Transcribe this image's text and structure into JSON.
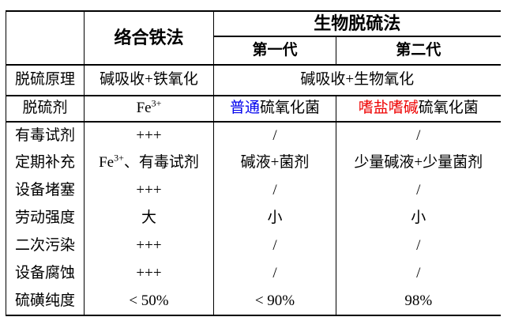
{
  "table": {
    "header": {
      "iron_method": "络合铁法",
      "bio_group": "生物脱硫法",
      "gen1": "第一代",
      "gen2": "第二代"
    },
    "principle": {
      "label": "脱硫原理",
      "iron": "碱吸收+铁氧化",
      "bio_merged": "碱吸收+生物氧化"
    },
    "agent": {
      "label": "脱硫剂",
      "iron_base": "Fe",
      "iron_sup": "3+",
      "gen1_colored": "普通",
      "gen1_rest": "硫氧化菌",
      "gen2_colored": "嗜盐嗜碱",
      "gen2_rest": "硫氧化菌"
    },
    "toxic": {
      "label": "有毒试剂",
      "iron": "+++",
      "gen1": "/",
      "gen2": "/"
    },
    "replenish": {
      "label": "定期补充",
      "iron_base": "Fe",
      "iron_sup": "3+",
      "iron_rest": "、有毒试剂",
      "gen1": "碱液+菌剂",
      "gen2": "少量碱液+少量菌剂"
    },
    "clogging": {
      "label": "设备堵塞",
      "iron": "+++",
      "gen1": "/",
      "gen2": "/"
    },
    "labor": {
      "label": "劳动强度",
      "iron": "大",
      "gen1": "小",
      "gen2": "小"
    },
    "pollution": {
      "label": "二次污染",
      "iron": "+++",
      "gen1": "/",
      "gen2": "/"
    },
    "corrosion": {
      "label": "设备腐蚀",
      "iron": "+++",
      "gen1": "/",
      "gen2": "/"
    },
    "purity": {
      "label": "硫磺纯度",
      "iron": "< 50%",
      "gen1": "< 90%",
      "gen2": "98%"
    }
  },
  "colors": {
    "blue_highlight": "#0000ee",
    "red_highlight": "#ee0000",
    "border": "#000000",
    "text": "#000000"
  },
  "chart_data": {
    "type": "table",
    "column_headers": [
      "",
      "络合铁法",
      "生物脱硫法 第一代",
      "生物脱硫法 第二代"
    ],
    "rows": [
      [
        "脱硫原理",
        "碱吸收+铁氧化",
        "碱吸收+生物氧化",
        "碱吸收+生物氧化"
      ],
      [
        "脱硫剂",
        "Fe3+",
        "普通硫氧化菌",
        "嗜盐嗜碱硫氧化菌"
      ],
      [
        "有毒试剂",
        "+++",
        "/",
        "/"
      ],
      [
        "定期补充",
        "Fe3+、有毒试剂",
        "碱液+菌剂",
        "少量碱液+少量菌剂"
      ],
      [
        "设备堵塞",
        "+++",
        "/",
        "/"
      ],
      [
        "劳动强度",
        "大",
        "小",
        "小"
      ],
      [
        "二次污染",
        "+++",
        "/",
        "/"
      ],
      [
        "设备腐蚀",
        "+++",
        "/",
        "/"
      ],
      [
        "硫磺纯度",
        "< 50%",
        "< 90%",
        "98%"
      ]
    ],
    "notes": {
      "highlighted_blue_text": "普通",
      "highlighted_red_text": "嗜盐嗜碱"
    }
  }
}
